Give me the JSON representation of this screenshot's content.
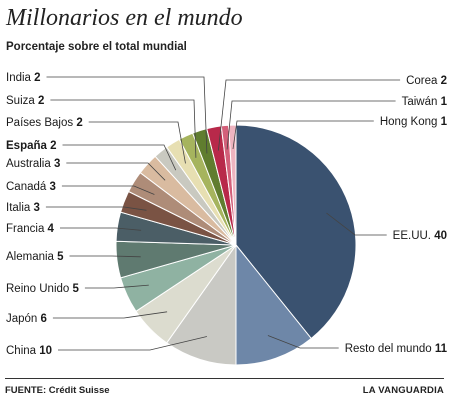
{
  "title": "Millonarios en el mundo",
  "subtitle": "Porcentaje sobre el total mundial",
  "source": "FUENTE: Crédit Suisse",
  "brand": "LA VANGUARDIA",
  "chart_data": {
    "type": "pie",
    "title": "Millonarios en el mundo",
    "subtitle": "Porcentaje sobre el total mundial",
    "start": "12 o'clock, clockwise",
    "slices": [
      {
        "label": "EE.UU.",
        "value": 40,
        "color": "#3a5270"
      },
      {
        "label": "Resto del mundo",
        "value": 11,
        "color": "#6e87a8"
      },
      {
        "label": "China",
        "value": 10,
        "color": "#c9c9c4"
      },
      {
        "label": "Japón",
        "value": 6,
        "color": "#dcdccf"
      },
      {
        "label": "Reino Unido",
        "value": 5,
        "color": "#8fb2a2"
      },
      {
        "label": "Alemania",
        "value": 5,
        "color": "#5f7a70"
      },
      {
        "label": "Francia",
        "value": 4,
        "color": "#4b5e66"
      },
      {
        "label": "Italia",
        "value": 3,
        "color": "#7a5344"
      },
      {
        "label": "Canadá",
        "value": 3,
        "color": "#ae8c78"
      },
      {
        "label": "Australia",
        "value": 3,
        "color": "#d9bba0"
      },
      {
        "label": "España",
        "value": 2,
        "color": "#c9c9c0"
      },
      {
        "label": "Países Bajos",
        "value": 2,
        "color": "#e7dfb2"
      },
      {
        "label": "Suiza",
        "value": 2,
        "color": "#a6b45e"
      },
      {
        "label": "India",
        "value": 2,
        "color": "#607d2f"
      },
      {
        "label": "Corea",
        "value": 2,
        "color": "#b8294a"
      },
      {
        "label": "Taiwán",
        "value": 1,
        "color": "#d3607a"
      },
      {
        "label": "Hong Kong",
        "value": 1,
        "color": "#eeb4c0"
      }
    ]
  }
}
